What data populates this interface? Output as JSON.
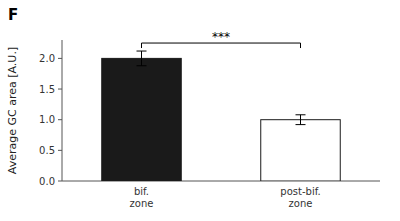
{
  "chart_data": {
    "type": "bar",
    "title": "F",
    "categories": [
      "bif.\nzone",
      "post-bif.\nzone"
    ],
    "values": [
      2.0,
      1.0
    ],
    "errors": [
      0.12,
      0.08
    ],
    "colors": [
      "#1a1a1a",
      "#ffffff"
    ],
    "ylabel": "Average GC area [A.U.]",
    "annotation": "***",
    "ylim": [
      0,
      2.3
    ],
    "yticks": [
      {
        "value": 0,
        "label": "0.0"
      },
      0.5,
      {
        "value": 1,
        "label": "1.0"
      },
      1.5,
      {
        "value": 2,
        "label": "2.0"
      }
    ],
    "grid": false
  }
}
